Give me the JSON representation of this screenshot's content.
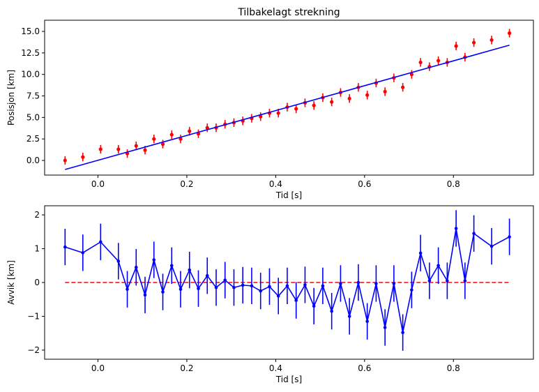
{
  "colors": {
    "data_points": "#ff0000",
    "fit_line": "#0000ff",
    "residuals": "#0000ff",
    "zero_line": "#ff0000",
    "axes": "#000000",
    "background": "#ffffff"
  },
  "chart_data": [
    {
      "type": "scatter",
      "title": "Tilbakelagt strekning",
      "xlabel": "Tid [s]",
      "ylabel": "Posisjon [km]",
      "xlim": [
        -0.12,
        0.98
      ],
      "ylim": [
        -1.7,
        16.3
      ],
      "xticks": [
        0.0,
        0.2,
        0.4,
        0.6,
        0.8
      ],
      "xtick_labels": [
        "0.0",
        "0.2",
        "0.4",
        "0.6",
        "0.8"
      ],
      "yticks": [
        0.0,
        2.5,
        5.0,
        7.5,
        10.0,
        12.5,
        15.0
      ],
      "ytick_labels": [
        "0.0",
        "2.5",
        "5.0",
        "7.5",
        "10.0",
        "12.5",
        "15.0"
      ],
      "grid": false,
      "series": [
        {
          "kind": "errorbar",
          "marker": "point",
          "x": [
            -0.074,
            -0.034,
            0.006,
            0.046,
            0.066,
            0.086,
            0.106,
            0.126,
            0.146,
            0.166,
            0.186,
            0.206,
            0.226,
            0.246,
            0.266,
            0.286,
            0.306,
            0.326,
            0.346,
            0.366,
            0.386,
            0.406,
            0.426,
            0.446,
            0.466,
            0.486,
            0.506,
            0.526,
            0.546,
            0.566,
            0.586,
            0.606,
            0.626,
            0.646,
            0.666,
            0.686,
            0.706,
            0.726,
            0.746,
            0.766,
            0.786,
            0.806,
            0.826,
            0.846,
            0.886,
            0.926
          ],
          "y": [
            0.0,
            0.4,
            1.3,
            1.3,
            0.8,
            1.7,
            1.2,
            2.5,
            1.9,
            3.0,
            2.5,
            3.4,
            3.1,
            3.8,
            3.8,
            4.2,
            4.4,
            4.6,
            4.9,
            5.1,
            5.5,
            5.5,
            6.2,
            6.0,
            6.7,
            6.4,
            7.3,
            6.8,
            7.9,
            7.2,
            8.5,
            7.6,
            9.0,
            8.0,
            9.6,
            8.5,
            10.0,
            11.4,
            10.9,
            11.6,
            11.4,
            13.3,
            12.0,
            13.7,
            14.0,
            14.8
          ],
          "yerr": 0.5
        },
        {
          "kind": "line",
          "x": [
            -0.074,
            0.926
          ],
          "y": [
            -1.05,
            13.4
          ]
        }
      ]
    },
    {
      "type": "line",
      "title": "",
      "xlabel": "Tid [s]",
      "ylabel": "Avvik [km]",
      "xlim": [
        -0.12,
        0.98
      ],
      "ylim": [
        -2.27,
        2.27
      ],
      "xticks": [
        0.0,
        0.2,
        0.4,
        0.6,
        0.8
      ],
      "xtick_labels": [
        "0.0",
        "0.2",
        "0.4",
        "0.6",
        "0.8"
      ],
      "yticks": [
        -2,
        -1,
        0,
        1,
        2
      ],
      "ytick_labels": [
        "−2",
        "−1",
        "0",
        "1",
        "2"
      ],
      "grid": false,
      "series": [
        {
          "kind": "errorbar",
          "marker": "point",
          "x": [
            -0.074,
            -0.034,
            0.006,
            0.046,
            0.066,
            0.086,
            0.106,
            0.126,
            0.146,
            0.166,
            0.186,
            0.206,
            0.226,
            0.246,
            0.266,
            0.286,
            0.306,
            0.326,
            0.346,
            0.366,
            0.386,
            0.406,
            0.426,
            0.446,
            0.466,
            0.486,
            0.506,
            0.526,
            0.546,
            0.566,
            0.586,
            0.606,
            0.626,
            0.646,
            0.666,
            0.686,
            0.706,
            0.726,
            0.746,
            0.766,
            0.786,
            0.806,
            0.826,
            0.846,
            0.886,
            0.926
          ],
          "y": [
            1.05,
            0.88,
            1.2,
            0.63,
            -0.2,
            0.45,
            -0.37,
            0.67,
            -0.28,
            0.5,
            -0.2,
            0.37,
            -0.18,
            0.2,
            -0.15,
            0.07,
            -0.15,
            -0.08,
            -0.1,
            -0.25,
            -0.12,
            -0.4,
            -0.1,
            -0.53,
            -0.07,
            -0.7,
            -0.1,
            -0.85,
            -0.03,
            -1.0,
            0.0,
            -1.15,
            -0.03,
            -1.33,
            -0.03,
            -1.48,
            -0.22,
            0.87,
            0.05,
            0.5,
            0.05,
            1.6,
            0.05,
            1.45,
            1.07,
            1.35
          ],
          "yerr": 0.54
        },
        {
          "kind": "dashed",
          "x": [
            -0.074,
            0.926
          ],
          "y": [
            0,
            0
          ]
        }
      ]
    }
  ]
}
